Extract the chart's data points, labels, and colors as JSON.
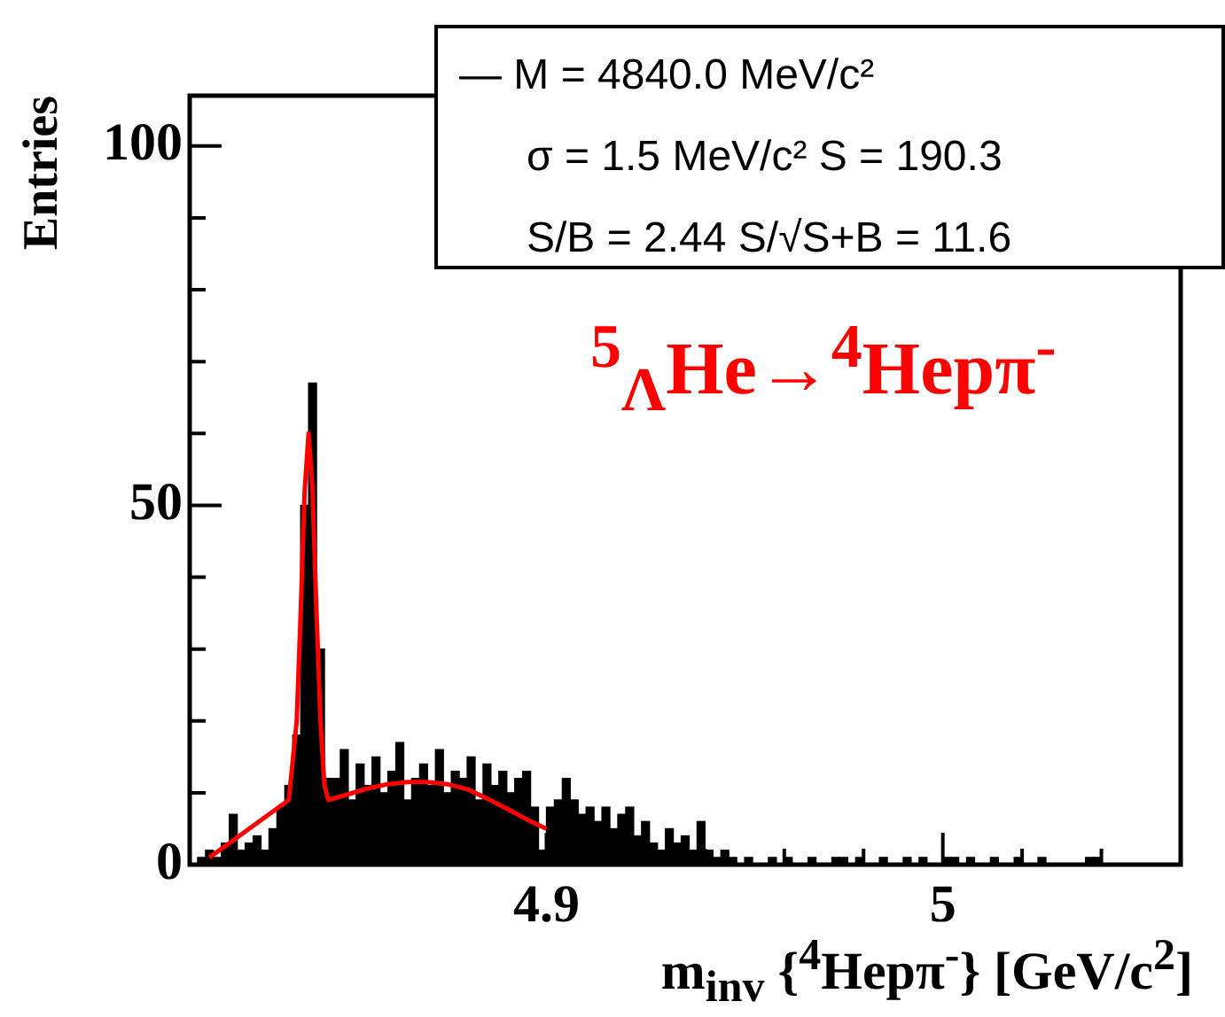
{
  "chart_data": {
    "type": "histogram",
    "xlabel": "m$_{inv}$ {$^{4}$Hepπ$^{-}$} [GeV/c$^{2}$]",
    "ylabel": "Entries",
    "annotations": [
      "— M = 4840.0 MeV/c²",
      "σ = 1.5 MeV/c²  S = 190.3",
      "S/B = 2.44  S/√S+B = 11.6",
      "$^{5}$$_{Λ}$He→$^{4}$Hepπ$^{-}$"
    ],
    "xlim": [
      4.81,
      5.06
    ],
    "ylim": [
      0,
      107
    ],
    "xticks": [
      {
        "value": 4.82,
        "label": null
      },
      {
        "value": 4.84,
        "label": null
      },
      {
        "value": 4.86,
        "label": null
      },
      {
        "value": 4.88,
        "label": null
      },
      4.9,
      {
        "value": 4.92,
        "label": null
      },
      {
        "value": 4.94,
        "label": null
      },
      {
        "value": 4.96,
        "label": null
      },
      {
        "value": 4.98,
        "label": null
      },
      5,
      {
        "value": 5.02,
        "label": null
      },
      {
        "value": 5.04,
        "label": null
      }
    ],
    "yticks": [
      0,
      {
        "value": 10,
        "label": null
      },
      {
        "value": 20,
        "label": null
      },
      {
        "value": 30,
        "label": null
      },
      {
        "value": 40,
        "label": null
      },
      50,
      {
        "value": 60,
        "label": null
      },
      {
        "value": 70,
        "label": null
      },
      {
        "value": 80,
        "label": null
      },
      {
        "value": 90,
        "label": null
      },
      100
    ],
    "grid": false,
    "legend": false,
    "series": [
      {
        "color": "#000000",
        "bins": [
          4.81,
          4.812,
          4.814,
          4.816,
          4.818,
          4.82,
          4.822,
          4.824,
          4.826,
          4.828,
          4.83,
          4.832,
          4.834,
          4.836,
          4.838,
          4.84,
          4.842,
          4.844,
          4.846,
          4.848,
          4.85,
          4.852,
          4.854,
          4.856,
          4.858,
          4.86,
          4.862,
          4.864,
          4.866,
          4.868,
          4.87,
          4.872,
          4.874,
          4.876,
          4.878,
          4.88,
          4.882,
          4.884,
          4.886,
          4.888,
          4.89,
          4.892,
          4.894,
          4.896,
          4.898,
          4.9,
          4.902,
          4.904,
          4.906,
          4.908,
          4.91,
          4.912,
          4.914,
          4.916,
          4.918,
          4.92,
          4.922,
          4.924,
          4.926,
          4.928,
          4.93,
          4.932,
          4.934,
          4.936,
          4.938,
          4.94,
          4.942,
          4.944,
          4.946,
          4.948,
          4.95,
          4.952,
          4.954,
          4.956,
          4.958,
          4.96,
          4.962,
          4.964,
          4.966,
          4.968,
          4.97,
          4.972,
          4.974,
          4.976,
          4.978,
          4.98,
          4.982,
          4.984,
          4.986,
          4.988,
          4.99,
          4.992,
          4.994,
          4.996,
          4.998,
          5,
          5.002,
          5.004,
          5.006,
          5.008,
          5.01,
          5.012,
          5.014,
          5.016,
          5.018,
          5.02,
          5.022,
          5.024,
          5.026,
          5.028,
          5.03,
          5.032,
          5.034,
          5.036,
          5.038,
          5.04,
          5.042,
          5.044,
          5.046,
          5.048,
          5.05,
          5.052,
          5.054,
          5.056,
          5.058,
          5.06
        ],
        "values": [
          0,
          1,
          2,
          1,
          3,
          7,
          2,
          3,
          4,
          2,
          5,
          8,
          11,
          18,
          50,
          67,
          30,
          12,
          12,
          16,
          9,
          14,
          11,
          15,
          10,
          13,
          17,
          9,
          12,
          14,
          11,
          16,
          10,
          13,
          12,
          15,
          9,
          14,
          11,
          13,
          10,
          12,
          13,
          8,
          2,
          8,
          9,
          12,
          9,
          7,
          8,
          6,
          8,
          5,
          7,
          8,
          4,
          6,
          3,
          2,
          5,
          3,
          4,
          2,
          6,
          2,
          1,
          2,
          1,
          0,
          1,
          0,
          0,
          1,
          0,
          1,
          0,
          0,
          1,
          0,
          0,
          1,
          1,
          0,
          1,
          0,
          0,
          1,
          0,
          0,
          1,
          0,
          1,
          0,
          0,
          1,
          1,
          0,
          1,
          0,
          0,
          1,
          0,
          0,
          1,
          0,
          0,
          1,
          0,
          0,
          0,
          0,
          0,
          1,
          1,
          0,
          0,
          0,
          0,
          0,
          0,
          0,
          0,
          0,
          0
        ]
      },
      {
        "type": "line",
        "color": "#ff0000",
        "x": [
          4.815,
          4.82,
          4.825,
          4.83,
          4.835,
          4.837,
          4.838,
          4.839,
          4.84,
          4.841,
          4.842,
          4.843,
          4.844,
          4.845,
          4.85,
          4.855,
          4.86,
          4.865,
          4.87,
          4.875,
          4.88,
          4.885,
          4.89,
          4.895,
          4.9
        ],
        "values": [
          1,
          3,
          5,
          7,
          9,
          20,
          35,
          52,
          60,
          52,
          35,
          20,
          11,
          9,
          9.8,
          10.6,
          11.2,
          11.5,
          11.5,
          11.2,
          10.5,
          9.2,
          7.8,
          6.3,
          5
        ]
      }
    ]
  }
}
